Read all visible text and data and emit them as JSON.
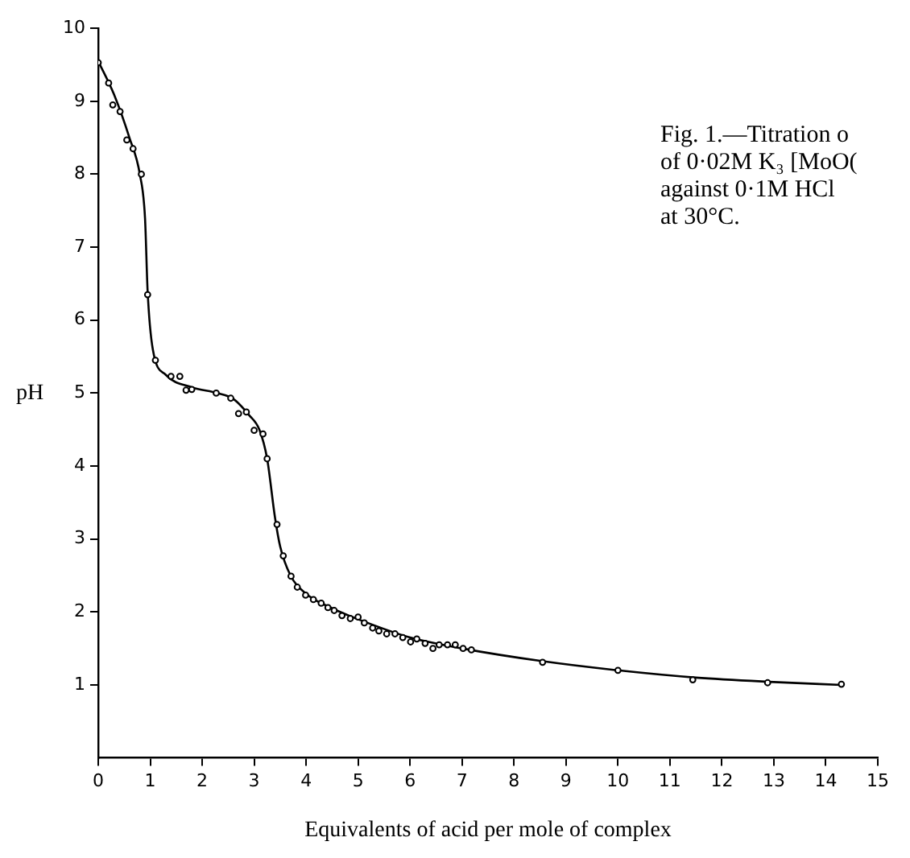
{
  "chart_data": {
    "type": "scatter",
    "xlabel": "Equivalents of acid per mole of complex",
    "ylabel": "pH",
    "annotations": [
      "Fig. 1.—Titration o",
      "of 0·02M K₃ [MoO(",
      "against 0·1M HCl",
      "at 30°C."
    ],
    "xlim": [
      0,
      15
    ],
    "xticks": [
      0,
      1,
      2,
      3,
      4,
      5,
      6,
      7,
      8,
      9,
      10,
      11,
      12,
      13,
      14,
      15
    ],
    "ylim": [
      0,
      10
    ],
    "yticks": [
      1,
      2,
      3,
      4,
      5,
      6,
      7,
      8,
      9,
      10
    ],
    "grid": false,
    "legend": false,
    "series": [
      {
        "type": "line",
        "marker": "none",
        "color": "#000000",
        "x": [
          0,
          0.3,
          0.6,
          0.8,
          0.9,
          0.95,
          1.05,
          1.3,
          1.8,
          2.3,
          2.6,
          2.9,
          3.1,
          3.25,
          3.4,
          3.5,
          3.7,
          4.0,
          4.5,
          5,
          6,
          7,
          8.5,
          10,
          11.5,
          13,
          14.3
        ],
        "values": [
          9.55,
          9.1,
          8.5,
          8.0,
          7.4,
          6.4,
          5.6,
          5.25,
          5.08,
          5.0,
          4.92,
          4.7,
          4.5,
          4.1,
          3.3,
          2.9,
          2.5,
          2.25,
          2.05,
          1.9,
          1.65,
          1.5,
          1.33,
          1.2,
          1.1,
          1.04,
          1.0
        ]
      },
      {
        "type": "scatter",
        "marker": "circle",
        "color": "#000000",
        "x": [
          0,
          0.2,
          0.28,
          0.42,
          0.55,
          0.67,
          0.83,
          0.95,
          1.1,
          1.4,
          1.57,
          1.69,
          1.8,
          2.27,
          2.55,
          2.7,
          2.85,
          3.0,
          3.17,
          3.25,
          3.44,
          3.56,
          3.71,
          3.83,
          3.99,
          4.14,
          4.29,
          4.42,
          4.54,
          4.69,
          4.85,
          5.0,
          5.12,
          5.28,
          5.4,
          5.55,
          5.71,
          5.86,
          6.01,
          6.13,
          6.29,
          6.44,
          6.56,
          6.72,
          6.87,
          7.02,
          7.18,
          8.55,
          10.0,
          11.44,
          12.88,
          14.3
        ],
        "values": [
          9.53,
          9.25,
          8.95,
          8.86,
          8.47,
          8.35,
          8.0,
          6.35,
          5.45,
          5.23,
          5.23,
          5.04,
          5.05,
          5.0,
          4.93,
          4.72,
          4.74,
          4.49,
          4.44,
          4.1,
          3.2,
          2.77,
          2.49,
          2.34,
          2.23,
          2.17,
          2.12,
          2.06,
          2.02,
          1.95,
          1.91,
          1.93,
          1.85,
          1.78,
          1.74,
          1.7,
          1.7,
          1.65,
          1.59,
          1.63,
          1.57,
          1.5,
          1.55,
          1.55,
          1.55,
          1.5,
          1.48,
          1.31,
          1.2,
          1.07,
          1.03,
          1.01
        ]
      }
    ]
  }
}
